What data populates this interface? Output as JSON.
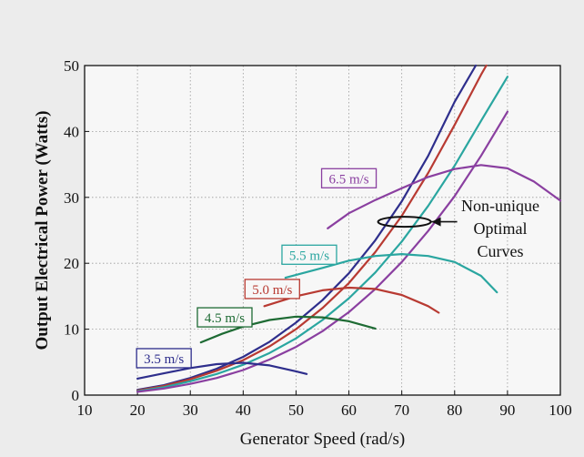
{
  "chart_data": {
    "type": "line",
    "title": "",
    "xlabel": "Generator Speed (rad/s)",
    "ylabel": "Output Electrical Power (Watts)",
    "xlim": [
      10,
      100
    ],
    "ylim": [
      0,
      50
    ],
    "xticks": [
      10,
      20,
      30,
      40,
      50,
      60,
      70,
      80,
      90,
      100
    ],
    "yticks": [
      0,
      10,
      20,
      30,
      40,
      50
    ],
    "grid": true,
    "annotation": {
      "lines": [
        "Non-unique",
        "Optimal",
        "Curves"
      ]
    },
    "wind_curves": [
      {
        "name": "3.5 m/s",
        "color": "#2e2e8c",
        "x": [
          20,
          25,
          30,
          35,
          40,
          45,
          50,
          52
        ],
        "y": [
          2.5,
          3.3,
          4.1,
          4.7,
          4.9,
          4.5,
          3.6,
          3.2
        ]
      },
      {
        "name": "4.5 m/s",
        "color": "#1e6b34",
        "x": [
          32,
          36,
          40,
          45,
          50,
          55,
          60,
          65
        ],
        "y": [
          8.0,
          9.3,
          10.4,
          11.4,
          11.9,
          11.8,
          11.2,
          10.1
        ]
      },
      {
        "name": "5.0 m/s",
        "color": "#b83a32",
        "x": [
          44,
          50,
          55,
          60,
          65,
          70,
          75,
          77
        ],
        "y": [
          13.5,
          15.0,
          15.9,
          16.3,
          16.1,
          15.2,
          13.5,
          12.5
        ]
      },
      {
        "name": "5.5 m/s",
        "color": "#2aa6a0",
        "x": [
          48,
          55,
          60,
          65,
          70,
          75,
          80,
          85,
          88
        ],
        "y": [
          17.8,
          19.3,
          20.4,
          21.1,
          21.4,
          21.1,
          20.2,
          18.1,
          15.6
        ]
      },
      {
        "name": "6.5 m/s",
        "color": "#8a3fa0",
        "x": [
          56,
          60,
          65,
          70,
          75,
          80,
          85,
          90,
          95,
          100
        ],
        "y": [
          25.3,
          27.6,
          29.6,
          31.4,
          33.1,
          34.3,
          34.9,
          34.4,
          32.4,
          29.5
        ]
      }
    ],
    "optimal_curves": [
      {
        "color": "#2e2e8c",
        "x": [
          20,
          25,
          30,
          35,
          40,
          45,
          50,
          55,
          60,
          65,
          70,
          75,
          80,
          84
        ],
        "y": [
          0.8,
          1.5,
          2.6,
          4.0,
          5.8,
          8.1,
          11.0,
          14.4,
          18.5,
          23.5,
          29.4,
          36.3,
          44.5,
          50
        ]
      },
      {
        "color": "#b83a32",
        "x": [
          20,
          25,
          30,
          35,
          40,
          45,
          50,
          55,
          60,
          65,
          70,
          75,
          80,
          85,
          86
        ],
        "y": [
          0.7,
          1.4,
          2.4,
          3.7,
          5.3,
          7.4,
          10.0,
          13.2,
          17.0,
          21.7,
          27.2,
          33.7,
          41.0,
          48.6,
          50
        ]
      },
      {
        "color": "#2aa6a0",
        "x": [
          20,
          25,
          30,
          35,
          40,
          45,
          50,
          55,
          60,
          65,
          70,
          75,
          80,
          85,
          90
        ],
        "y": [
          0.6,
          1.2,
          2.1,
          3.2,
          4.6,
          6.4,
          8.6,
          11.4,
          14.7,
          18.6,
          23.3,
          28.7,
          34.8,
          41.6,
          48.3
        ]
      },
      {
        "color": "#8a3fa0",
        "x": [
          20,
          25,
          30,
          35,
          40,
          45,
          50,
          55,
          60,
          65,
          70,
          75,
          80,
          85,
          90
        ],
        "y": [
          0.5,
          1.0,
          1.7,
          2.6,
          3.8,
          5.4,
          7.3,
          9.7,
          12.6,
          16.1,
          20.2,
          24.9,
          30.2,
          36.3,
          43.0
        ]
      }
    ]
  }
}
